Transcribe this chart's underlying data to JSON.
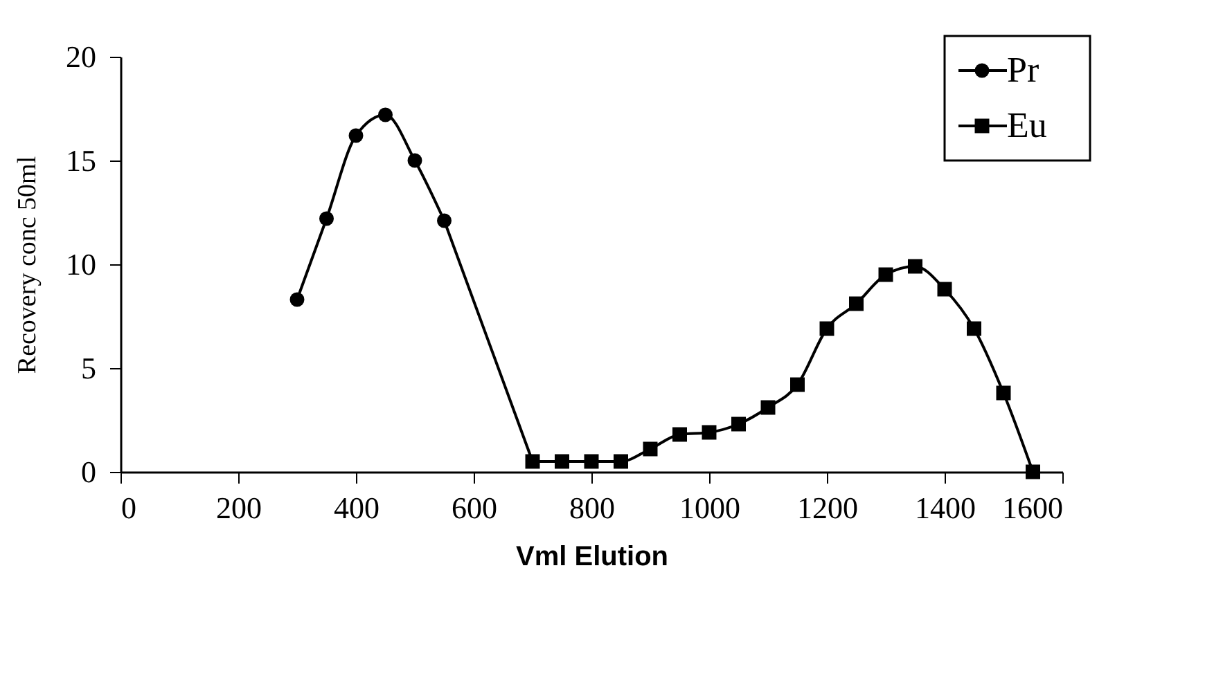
{
  "chart_data": {
    "type": "line",
    "xlabel": "Vml Elution",
    "ylabel": "Recovery conc      50ml",
    "xlim": [
      0,
      1600
    ],
    "xticks": [
      0,
      200,
      400,
      600,
      800,
      {
        "value": 1000,
        "label": "1000"
      },
      {
        "value": 1200,
        "label": "1200"
      },
      {
        "value": 1400,
        "label": "1400"
      },
      {
        "value": 1600,
        "label": "1600"
      }
    ],
    "ylim": [
      0,
      20
    ],
    "yticks": [
      0,
      5,
      10,
      15,
      20
    ],
    "grid": false,
    "legend": "top right",
    "series": [
      {
        "name": "Pr",
        "color": "#000000",
        "marker": "circle",
        "x": [
          300,
          350,
          400,
          450,
          500,
          550
        ],
        "values": [
          8.3,
          12.2,
          16.2,
          17.2,
          15,
          12.1
        ]
      },
      {
        "color": "#000000",
        "x": [
          550,
          700
        ],
        "values": [
          12.1,
          0.5
        ]
      },
      {
        "name": "Eu",
        "color": "#000000",
        "marker": "square",
        "x": [
          700,
          750,
          800,
          850,
          900,
          950,
          1000,
          1050,
          1100,
          1150,
          1200,
          1250,
          1300,
          1350,
          1400,
          1450,
          1500,
          1550
        ],
        "values": [
          0.5,
          0.5,
          0.5,
          0.5,
          1.1,
          1.8,
          1.9,
          2.3,
          3.1,
          4.2,
          6.9,
          8.1,
          9.5,
          9.9,
          8.8,
          6.9,
          3.8,
          0
        ]
      }
    ]
  }
}
